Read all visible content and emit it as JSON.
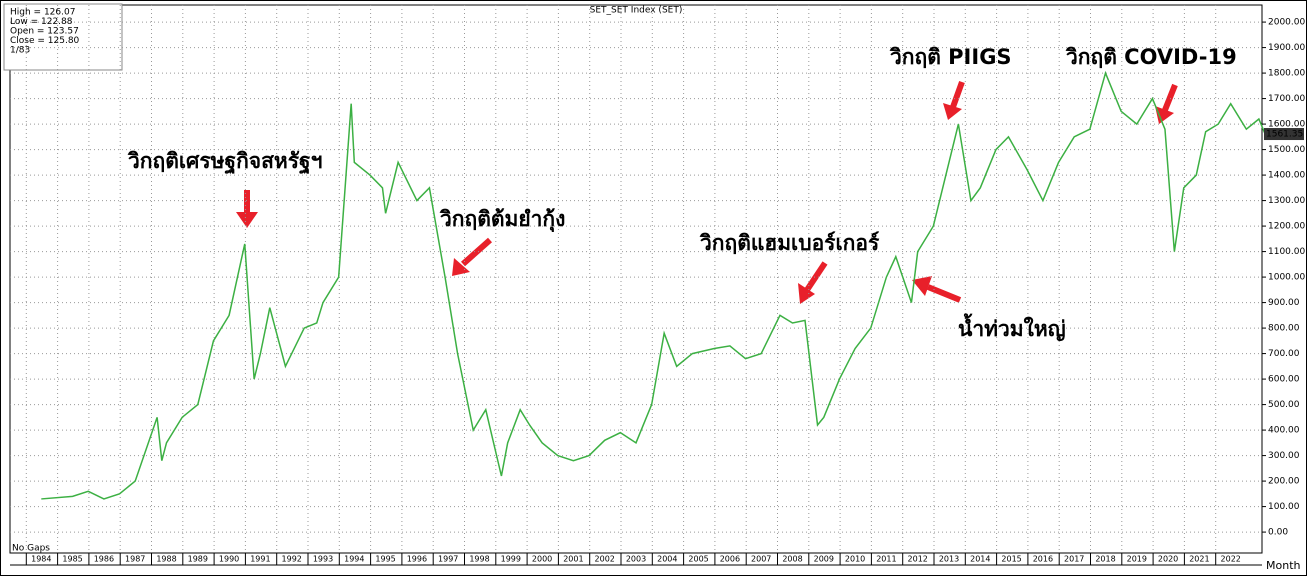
{
  "chart_data": {
    "type": "line",
    "title": "SET_SET Index (SET)",
    "info": [
      "High  = 126.07",
      "Low   = 122.88",
      "Open  = 123.57",
      "Close = 125.80",
      "1/83"
    ],
    "info_colors": [
      "#000000",
      "#000000",
      "#2ecc40",
      "#e8393c",
      "#000000"
    ],
    "gaps_label": "No Gaps",
    "period_label": "Month",
    "last_label": "1561.35",
    "color": "#3cb043",
    "x": [
      1984.0,
      1985.0,
      1985.5,
      1986.0,
      1986.5,
      1987.0,
      1987.7,
      1987.85,
      1988.0,
      1988.5,
      1989.0,
      1989.5,
      1990.0,
      1990.5,
      1990.8,
      1991.0,
      1991.3,
      1991.8,
      1992.0,
      1992.4,
      1992.8,
      1993.0,
      1993.5,
      1993.9,
      1994.0,
      1994.5,
      1994.9,
      1995.0,
      1995.4,
      1996.0,
      1996.4,
      1996.9,
      1997.3,
      1997.8,
      1998.2,
      1998.7,
      1998.9,
      1999.3,
      1999.6,
      2000.0,
      2000.5,
      2001.0,
      2001.5,
      2002.0,
      2002.5,
      2003.0,
      2003.5,
      2003.9,
      2004.3,
      2004.8,
      2005.5,
      2006.0,
      2006.5,
      2007.0,
      2007.6,
      2008.0,
      2008.4,
      2008.8,
      2009.0,
      2009.5,
      2010.0,
      2010.5,
      2011.0,
      2011.3,
      2011.8,
      2012.0,
      2012.5,
      2013.0,
      2013.3,
      2013.7,
      2014.0,
      2014.5,
      2014.9,
      2015.5,
      2016.0,
      2016.5,
      2017.0,
      2017.5,
      2018.0,
      2018.5,
      2019.0,
      2019.5,
      2019.9,
      2020.2,
      2020.5,
      2020.9,
      2021.2,
      2021.6,
      2022.0,
      2022.5,
      2022.9,
      2023.1
    ],
    "values": [
      130,
      140,
      160,
      130,
      150,
      200,
      450,
      280,
      350,
      450,
      500,
      750,
      850,
      1130,
      600,
      700,
      880,
      650,
      700,
      800,
      820,
      900,
      1000,
      1680,
      1450,
      1400,
      1350,
      1250,
      1450,
      1300,
      1350,
      1000,
      700,
      400,
      480,
      220,
      350,
      480,
      420,
      350,
      300,
      280,
      300,
      360,
      390,
      350,
      500,
      780,
      650,
      700,
      720,
      730,
      680,
      700,
      850,
      820,
      830,
      420,
      450,
      600,
      720,
      800,
      1000,
      1080,
      900,
      1100,
      1200,
      1450,
      1600,
      1300,
      1350,
      1500,
      1550,
      1420,
      1300,
      1450,
      1550,
      1580,
      1800,
      1650,
      1600,
      1700,
      1580,
      1100,
      1350,
      1400,
      1570,
      1600,
      1680,
      1580,
      1620,
      1561
    ],
    "xlim": [
      1983,
      2023
    ],
    "ylim": [
      -82,
      2067
    ],
    "xticks": [
      1984,
      1985,
      1986,
      1987,
      1988,
      1989,
      1990,
      1991,
      1992,
      1993,
      1994,
      1995,
      1996,
      1997,
      1998,
      1999,
      2000,
      2001,
      2002,
      2003,
      2004,
      2005,
      2006,
      2007,
      2008,
      2009,
      2010,
      2011,
      2012,
      2013,
      2014,
      2015,
      2016,
      2017,
      2018,
      2019,
      2020,
      2021,
      2022
    ],
    "yticks": [
      {
        "value": 0,
        "label": "0.00"
      },
      {
        "value": 100,
        "label": "100.00"
      },
      {
        "value": 200,
        "label": "200.00"
      },
      {
        "value": 300,
        "label": "300.00"
      },
      {
        "value": 400,
        "label": "400.00"
      },
      {
        "value": 500,
        "label": "500.00"
      },
      {
        "value": 600,
        "label": "600.00"
      },
      {
        "value": 700,
        "label": "700.00"
      },
      {
        "value": 800,
        "label": "800.00"
      },
      {
        "value": 900,
        "label": "900.00"
      },
      {
        "value": 1000,
        "label": "1000.00"
      },
      {
        "value": 1100,
        "label": "1100.00"
      },
      {
        "value": 1200,
        "label": "1200.00"
      },
      {
        "value": 1300,
        "label": "1300.00"
      },
      {
        "value": 1400,
        "label": "1400.00"
      },
      {
        "value": 1500,
        "label": "1500.00"
      },
      {
        "value": 1600,
        "label": "1600.00"
      },
      {
        "value": 1700,
        "label": "1700.00"
      },
      {
        "value": 1800,
        "label": "1800.00"
      },
      {
        "value": 1900,
        "label": "1900.00"
      },
      {
        "value": 2000,
        "label": "2000.00"
      }
    ],
    "grid": true,
    "annotations": [
      "วิกฤติเศรษฐกิจสหรัฐฯ",
      "วิกฤติต้มยำกุ้ง",
      "วิกฤติแฮมเบอร์เกอร์",
      "น้ำท่วมใหญ่",
      "วิกฤติ PIIGS",
      "วิกฤติ COVID-19"
    ],
    "annotation_color": "#e8202a"
  }
}
